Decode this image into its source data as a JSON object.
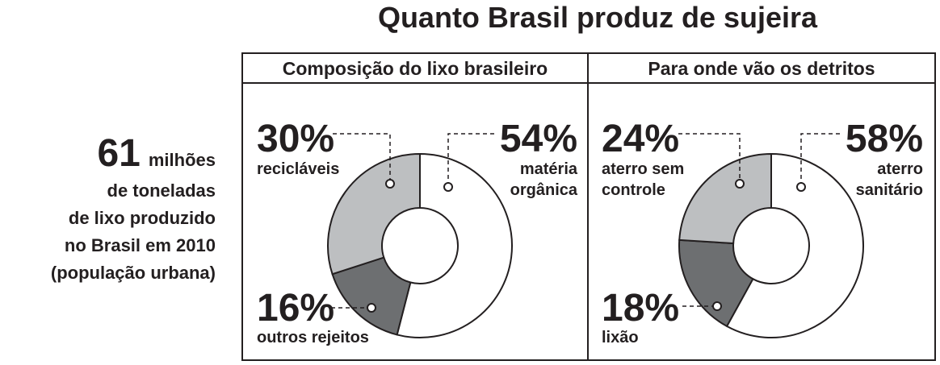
{
  "title": "Quanto Brasil produz de sujeira",
  "headline": {
    "number": 61,
    "unit": "milhões",
    "lines": [
      "de toneladas",
      "de lixo produzido",
      "no Brasil em 2010",
      "(população urbana)"
    ]
  },
  "chart_data": [
    {
      "type": "pie",
      "title": "Composição do lixo brasileiro",
      "categories": [
        "matéria\norgânica",
        "outros rejeitos",
        "recicláveis"
      ],
      "values": [
        54,
        16,
        30
      ],
      "value_labels": [
        "54%",
        "16%",
        "30%"
      ],
      "colors": [
        "#ffffff",
        "#6d6f71",
        "#bdbfc1"
      ]
    },
    {
      "type": "pie",
      "title": "Para onde vão os detritos",
      "categories": [
        "aterro\nsanitário",
        "lixão",
        "aterro sem\ncontrole"
      ],
      "values": [
        58,
        18,
        24
      ],
      "value_labels": [
        "58%",
        "18%",
        "24%"
      ],
      "colors": [
        "#ffffff",
        "#6d6f71",
        "#bdbfc1"
      ]
    }
  ]
}
